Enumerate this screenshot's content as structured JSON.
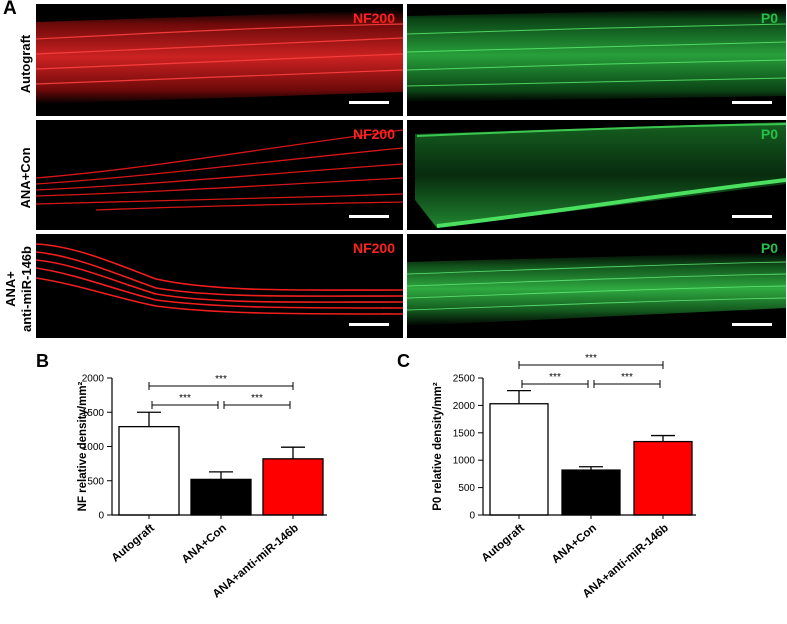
{
  "figure": {
    "panel_a_label": "A",
    "rows": [
      {
        "label": "Autograft"
      },
      {
        "label": "ANA+Con"
      },
      {
        "label_line1": "ANA+",
        "label_line2": "anti-miR-146b"
      }
    ],
    "stain_labels": {
      "red": "NF200",
      "green": "P0"
    },
    "colors": {
      "nf200": "#ff1a1a",
      "p0": "#2ecc40",
      "autograft_bar": "#ffffff",
      "con_bar": "#000000",
      "anti_bar": "#ff0000"
    }
  },
  "chart_data": [
    {
      "panel_label": "B",
      "type": "bar",
      "categories": [
        "Autograft",
        "ANA+Con",
        "ANA+anti-miR-146b"
      ],
      "values": [
        1290,
        520,
        820
      ],
      "errors": [
        210,
        110,
        170
      ],
      "ylabel": "NF relative density/mm²",
      "ylim": [
        0,
        2000
      ],
      "yticks": [
        "0",
        "500",
        "1000",
        "1500",
        "2000"
      ],
      "significance": [
        {
          "from": 0,
          "to": 2,
          "label": "***"
        },
        {
          "from": 0,
          "to": 1,
          "label": "***"
        },
        {
          "from": 1,
          "to": 2,
          "label": "***"
        }
      ]
    },
    {
      "panel_label": "C",
      "type": "bar",
      "categories": [
        "Autograft",
        "ANA+Con",
        "ANA+anti-miR-146b"
      ],
      "values": [
        2030,
        820,
        1340
      ],
      "errors": [
        240,
        60,
        110
      ],
      "ylabel": "P0 relative density/mm²",
      "ylim": [
        0,
        2500
      ],
      "yticks": [
        "0",
        "500",
        "1000",
        "1500",
        "2000",
        "2500"
      ],
      "significance": [
        {
          "from": 0,
          "to": 2,
          "label": "***"
        },
        {
          "from": 0,
          "to": 1,
          "label": "***"
        },
        {
          "from": 1,
          "to": 2,
          "label": "***"
        }
      ]
    }
  ]
}
